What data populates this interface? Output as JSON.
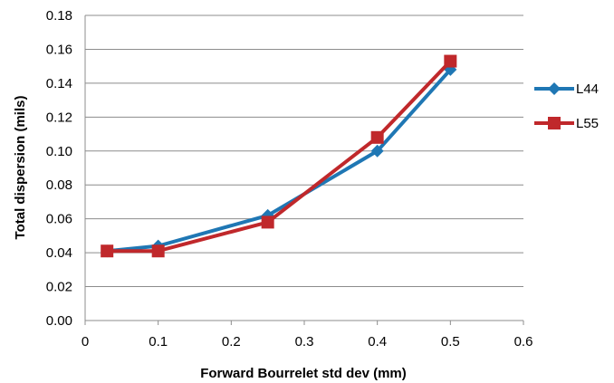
{
  "chart_data": {
    "type": "line",
    "title": "",
    "xlabel": "Forward Bourrelet  std dev (mm)",
    "ylabel": "Total dispersion (mils)",
    "xlim": [
      0,
      0.6
    ],
    "ylim": [
      0,
      0.18
    ],
    "x_ticks": [
      "0",
      "0.1",
      "0.2",
      "0.3",
      "0.4",
      "0.5",
      "0.6"
    ],
    "y_ticks": [
      "0.00",
      "0.02",
      "0.04",
      "0.06",
      "0.08",
      "0.10",
      "0.12",
      "0.14",
      "0.16",
      "0.18"
    ],
    "grid": "horizontal",
    "legend_position": "right",
    "series": [
      {
        "name": "L44",
        "color": "#1f77b4",
        "marker": "diamond",
        "x": [
          0.03,
          0.1,
          0.25,
          0.4,
          0.5
        ],
        "y": [
          0.041,
          0.044,
          0.062,
          0.1,
          0.148
        ]
      },
      {
        "name": "L55",
        "color": "#c0282b",
        "marker": "square",
        "x": [
          0.03,
          0.1,
          0.25,
          0.4,
          0.5
        ],
        "y": [
          0.041,
          0.041,
          0.058,
          0.108,
          0.153
        ]
      }
    ]
  }
}
